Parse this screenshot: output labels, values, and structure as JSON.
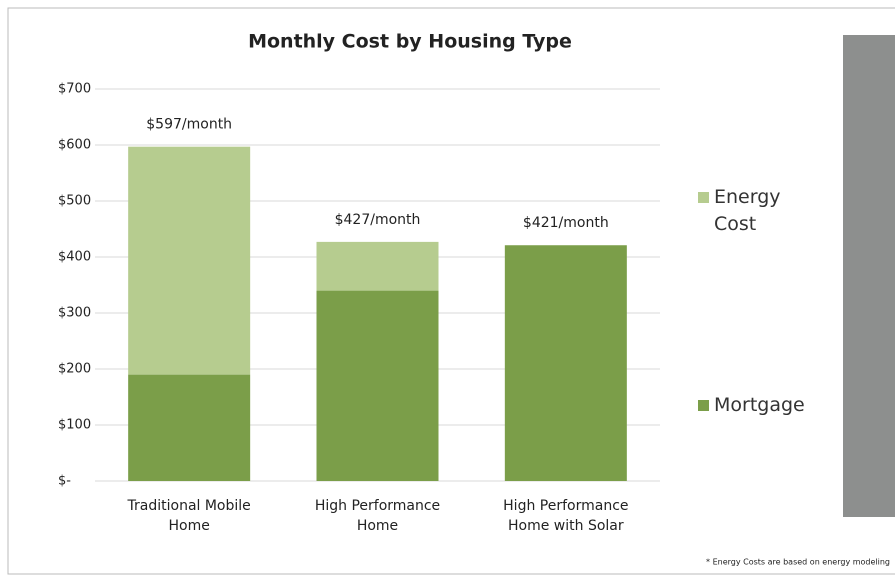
{
  "chart_data": {
    "type": "stacked_bar",
    "title": "Monthly Cost by Housing Type",
    "categories": [
      "Traditional Mobile Home",
      "High Performance Home",
      "High Performance Home with Solar"
    ],
    "series": [
      {
        "name": "Mortgage",
        "color": "#7b9e49",
        "values": [
          190,
          340,
          421
        ]
      },
      {
        "name": "Energy Cost",
        "color": "#b6cc8f",
        "values": [
          407,
          87,
          0
        ]
      }
    ],
    "total_labels": [
      "$597/month",
      "$427/month",
      "$421/month"
    ],
    "ylim": [
      0,
      700
    ],
    "yticks": [
      {
        "value": 0,
        "label": "$-"
      },
      {
        "value": 100,
        "label": "$100"
      },
      {
        "value": 200,
        "label": "$200"
      },
      {
        "value": 300,
        "label": "$300"
      },
      {
        "value": 400,
        "label": "$400"
      },
      {
        "value": 500,
        "label": "$500"
      },
      {
        "value": 600,
        "label": "$600"
      },
      {
        "value": 700,
        "label": "$700"
      }
    ],
    "grid": true,
    "footnote": "* Energy Costs are based on energy modeling"
  }
}
